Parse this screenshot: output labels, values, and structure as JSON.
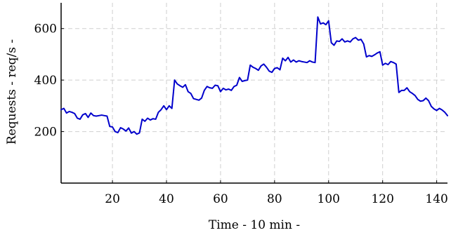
{
  "chart_data": {
    "type": "line",
    "title": "",
    "xlabel": "Time - 10 min -",
    "ylabel": "Requests - req/s -",
    "xlim": [
      1,
      144
    ],
    "ylim": [
      0,
      700
    ],
    "x_ticks": [
      20,
      40,
      60,
      80,
      100,
      120,
      140
    ],
    "y_ticks": [
      200,
      400,
      600
    ],
    "grid": true,
    "color": "#0000cc",
    "x": [
      1,
      2,
      3,
      4,
      5,
      6,
      7,
      8,
      9,
      10,
      11,
      12,
      13,
      14,
      15,
      16,
      17,
      18,
      19,
      20,
      21,
      22,
      23,
      24,
      25,
      26,
      27,
      28,
      29,
      30,
      31,
      32,
      33,
      34,
      35,
      36,
      37,
      38,
      39,
      40,
      41,
      42,
      43,
      44,
      45,
      46,
      47,
      48,
      49,
      50,
      51,
      52,
      53,
      54,
      55,
      56,
      57,
      58,
      59,
      60,
      61,
      62,
      63,
      64,
      65,
      66,
      67,
      68,
      69,
      70,
      71,
      72,
      73,
      74,
      75,
      76,
      77,
      78,
      79,
      80,
      81,
      82,
      83,
      84,
      85,
      86,
      87,
      88,
      89,
      90,
      91,
      92,
      93,
      94,
      95,
      96,
      97,
      98,
      99,
      100,
      101,
      102,
      103,
      104,
      105,
      106,
      107,
      108,
      109,
      110,
      111,
      112,
      113,
      114,
      115,
      116,
      117,
      118,
      119,
      120,
      121,
      122,
      123,
      124,
      125,
      126,
      127,
      128,
      129,
      130,
      131,
      132,
      133,
      134,
      135,
      136,
      137,
      138,
      139,
      140,
      141,
      142,
      143,
      144
    ],
    "values": [
      285,
      290,
      272,
      278,
      275,
      270,
      252,
      248,
      265,
      270,
      255,
      272,
      262,
      260,
      262,
      264,
      262,
      260,
      220,
      218,
      200,
      196,
      215,
      210,
      202,
      214,
      194,
      200,
      190,
      195,
      248,
      240,
      252,
      245,
      250,
      248,
      275,
      285,
      300,
      285,
      300,
      290,
      400,
      385,
      378,
      372,
      382,
      355,
      348,
      328,
      325,
      322,
      330,
      360,
      375,
      370,
      368,
      380,
      378,
      355,
      368,
      362,
      365,
      360,
      375,
      380,
      410,
      395,
      398,
      400,
      458,
      450,
      445,
      438,
      455,
      462,
      450,
      435,
      430,
      445,
      448,
      440,
      485,
      475,
      488,
      470,
      478,
      470,
      475,
      472,
      470,
      468,
      475,
      470,
      468,
      645,
      618,
      622,
      615,
      630,
      545,
      535,
      552,
      550,
      560,
      548,
      552,
      548,
      560,
      565,
      555,
      558,
      540,
      490,
      495,
      492,
      498,
      505,
      510,
      458,
      465,
      460,
      472,
      468,
      462,
      352,
      360,
      360,
      370,
      355,
      348,
      340,
      325,
      318,
      320,
      330,
      320,
      298,
      288,
      282,
      290,
      284,
      275,
      262
    ]
  }
}
